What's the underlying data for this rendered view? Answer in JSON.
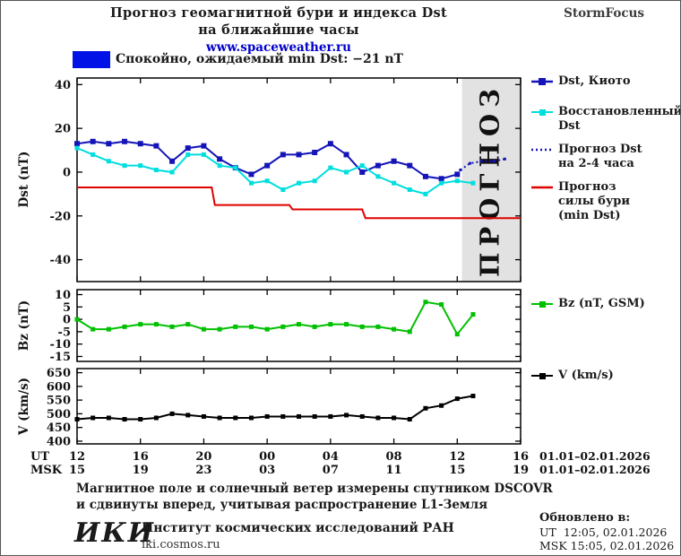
{
  "header": {
    "title_line1": "Прогноз геомагнитной бури и индекса Dst",
    "title_line2": "на ближайшие часы",
    "site": "www.spaceweather.ru",
    "brand": "StormFocus"
  },
  "banner": {
    "status_text": "Спокойно, ожидаемый min Dst: −21 nT",
    "level_color": "#0012e6"
  },
  "legend": {
    "kyoto_l1": "Dst, Киото",
    "restored_l1": "Восстановленный",
    "restored_l2": "Dst",
    "forecast_l1": "Прогноз Dst",
    "forecast_l2": "на 2-4 часа",
    "storm_l1": "Прогноз",
    "storm_l2": "силы бури",
    "storm_l3": "(min Dst)",
    "bz_l1": "Bz (nT, GSM)",
    "v_l1": "V (km/s)"
  },
  "axes": {
    "ut_label": "UT",
    "msk_label": "MSK",
    "ut_ticks": [
      "12",
      "16",
      "20",
      "00",
      "04",
      "08",
      "12",
      "16"
    ],
    "msk_ticks": [
      "15",
      "19",
      "23",
      "03",
      "07",
      "11",
      "15",
      "19"
    ],
    "ut_date_range": "01.01–02.01.2026",
    "msk_date_range": "01.01–02.01.2026"
  },
  "forecast_watermark": "ПРОГНОЗ",
  "footnote": {
    "line1": "Магнитное поле и солнечный ветер измерены спутником DSCOVR",
    "line2": "и сдвинуты вперед, учитывая распространение L1-Земля"
  },
  "footer": {
    "logo": "ИКИ",
    "institute": "Институт космических исследований РАН",
    "site": "iki.cosmos.ru",
    "updated_label": "Обновлено в:",
    "updated_ut": "UT  12:05, 02.01.2026",
    "updated_msk": "MSK 15:05, 02.01.2026"
  },
  "chart_data": [
    {
      "type": "line",
      "id": "dst",
      "title": "Прогноз геомагнитной бури и индекса Dst на ближайшие часы",
      "ylabel": "Dst (nT)",
      "ylim": [
        -50,
        43
      ],
      "yticks": [
        40,
        20,
        0,
        -20,
        -40
      ],
      "xlim": [
        0,
        28
      ],
      "x_unit": "hours since 12:00 UT 01.01.2026",
      "xtick_positions": [
        0,
        4,
        8,
        12,
        16,
        20,
        24,
        28
      ],
      "forecast_region_x": [
        24.3,
        28
      ],
      "series": [
        {
          "name": "Dst, Киото",
          "color": "#1414b8",
          "style": "solid",
          "marker": "square",
          "marker_size": 6,
          "x": [
            0,
            1,
            2,
            3,
            4,
            5,
            6,
            7,
            8,
            9,
            10,
            11,
            12,
            13,
            14,
            15,
            16,
            17,
            18,
            19,
            20,
            21,
            22,
            23,
            24
          ],
          "y": [
            13,
            14,
            13,
            14,
            13,
            12,
            5,
            11,
            12,
            6,
            2,
            -1,
            3,
            8,
            8,
            9,
            13,
            8,
            0,
            3,
            5,
            3,
            -2,
            -3,
            -1
          ]
        },
        {
          "name": "Восстановленный Dst",
          "color": "#00dede",
          "style": "solid",
          "marker": "square",
          "marker_size": 5,
          "x": [
            0,
            1,
            2,
            3,
            4,
            5,
            6,
            7,
            8,
            9,
            10,
            11,
            12,
            13,
            14,
            15,
            16,
            17,
            18,
            19,
            20,
            21,
            22,
            23,
            24,
            25
          ],
          "y": [
            11,
            8,
            5,
            3,
            3,
            1,
            0,
            8,
            8,
            3,
            2,
            -5,
            -4,
            -8,
            -5,
            -4,
            2,
            0,
            3,
            -2,
            -5,
            -8,
            -10,
            -5,
            -4,
            -5
          ]
        },
        {
          "name": "Прогноз Dst на 2-4 часа",
          "color": "#1414b8",
          "style": "dotted",
          "marker": "square",
          "marker_size": 3,
          "x": [
            24.2,
            24.8,
            25.5,
            26.3,
            27
          ],
          "y": [
            1,
            4,
            5,
            5,
            6
          ]
        },
        {
          "name": "Прогноз силы бури (min Dst)",
          "color": "#e00000",
          "style": "solid",
          "marker": "none",
          "x": [
            0,
            8.5,
            8.7,
            13.4,
            13.6,
            18,
            18.2,
            28
          ],
          "y": [
            -7,
            -7,
            -15,
            -15,
            -17,
            -17,
            -21,
            -21
          ]
        }
      ]
    },
    {
      "type": "line",
      "id": "bz",
      "ylabel": "Bz (nT)",
      "ylim": [
        -17,
        12
      ],
      "yticks": [
        10,
        5,
        0,
        -5,
        -10,
        -15
      ],
      "xlim": [
        0,
        28
      ],
      "xtick_positions": [
        0,
        4,
        8,
        12,
        16,
        20,
        24,
        28
      ],
      "series": [
        {
          "name": "Bz (nT, GSM)",
          "color": "#00c000",
          "style": "solid",
          "marker": "square",
          "marker_size": 5,
          "x": [
            0,
            1,
            2,
            3,
            4,
            5,
            6,
            7,
            8,
            9,
            10,
            11,
            12,
            13,
            14,
            15,
            16,
            17,
            18,
            19,
            20,
            21,
            22,
            23,
            24,
            25
          ],
          "y": [
            0,
            -4,
            -4,
            -3,
            -2,
            -2,
            -3,
            -2,
            -4,
            -4,
            -3,
            -3,
            -4,
            -3,
            -2,
            -3,
            -2,
            -2,
            -3,
            -3,
            -4,
            -5,
            7,
            6,
            -6,
            2
          ]
        }
      ]
    },
    {
      "type": "line",
      "id": "v",
      "ylabel": "V (km/s)",
      "ylim": [
        390,
        665
      ],
      "yticks": [
        650,
        600,
        550,
        500,
        450,
        400
      ],
      "xlim": [
        0,
        28
      ],
      "xtick_positions": [
        0,
        4,
        8,
        12,
        16,
        20,
        24,
        28
      ],
      "series": [
        {
          "name": "V (km/s)",
          "color": "#000000",
          "style": "solid",
          "marker": "square",
          "marker_size": 5,
          "x": [
            0,
            1,
            2,
            3,
            4,
            5,
            6,
            7,
            8,
            9,
            10,
            11,
            12,
            13,
            14,
            15,
            16,
            17,
            18,
            19,
            20,
            21,
            22,
            23,
            24,
            25
          ],
          "y": [
            480,
            485,
            485,
            480,
            480,
            485,
            500,
            495,
            490,
            485,
            485,
            485,
            490,
            490,
            490,
            490,
            490,
            495,
            490,
            485,
            485,
            480,
            520,
            530,
            555,
            565
          ]
        }
      ]
    }
  ]
}
